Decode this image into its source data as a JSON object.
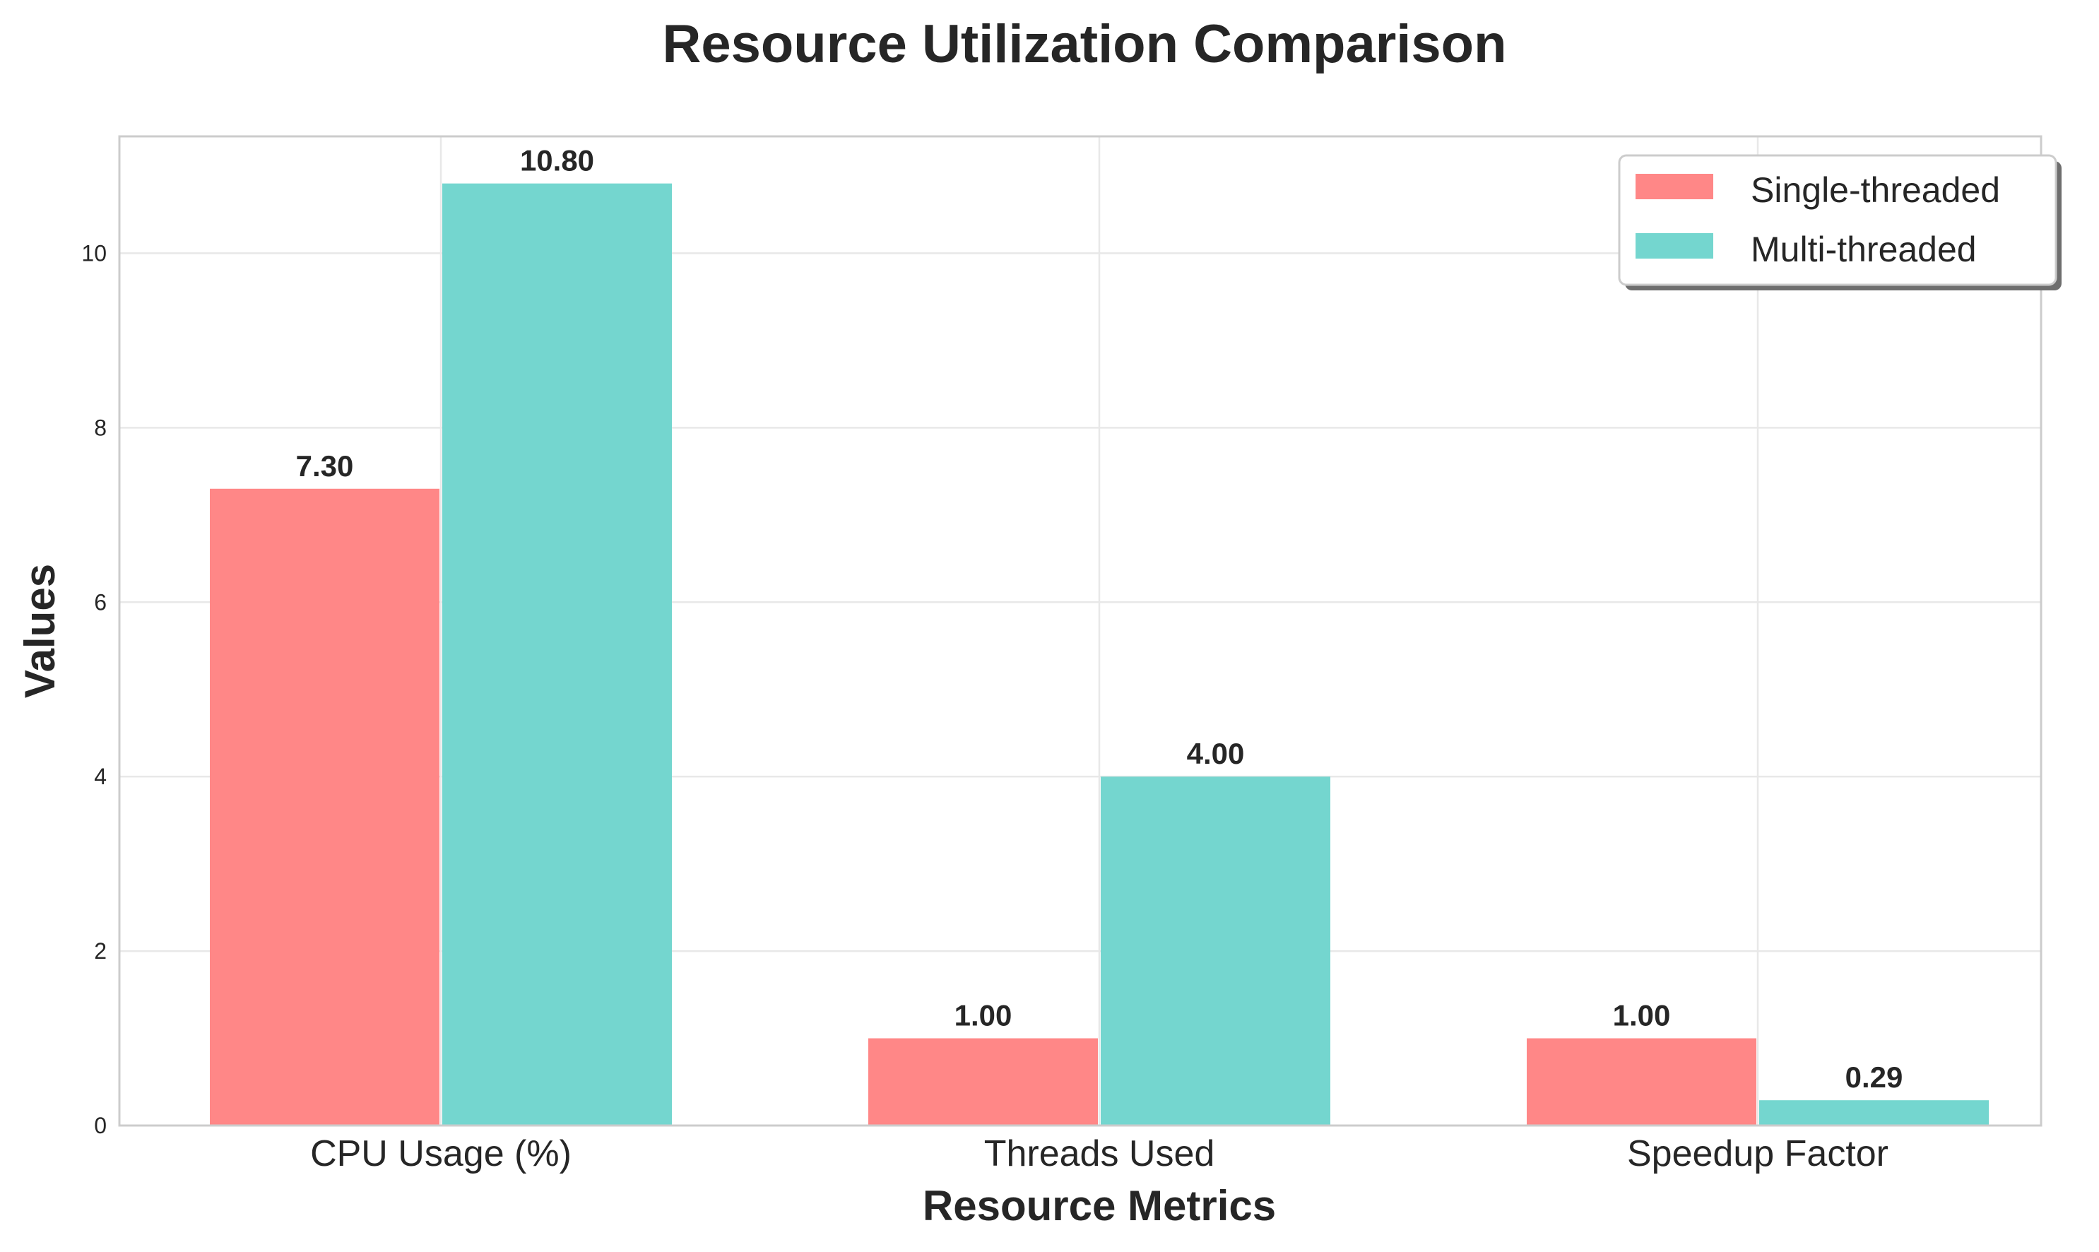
{
  "chart_data": {
    "type": "bar",
    "title": "Resource Utilization Comparison",
    "xlabel": "Resource Metrics",
    "ylabel": "Values",
    "categories": [
      "CPU Usage (%)",
      "Threads Used",
      "Speedup Factor"
    ],
    "series": [
      {
        "name": "Single-threaded",
        "color": "#ff8787",
        "values": [
          7.3,
          1.0,
          1.0
        ],
        "labels": [
          "7.30",
          "1.00",
          "1.00"
        ]
      },
      {
        "name": "Multi-threaded",
        "color": "#74d6cf",
        "values": [
          10.8,
          4.0,
          0.29
        ],
        "labels": [
          "10.80",
          "4.00",
          "0.29"
        ]
      }
    ],
    "ylim": [
      0,
      11.34
    ],
    "yticks": [
      0,
      2,
      4,
      6,
      8,
      10
    ],
    "grid": true,
    "legend_position": "top-right"
  }
}
